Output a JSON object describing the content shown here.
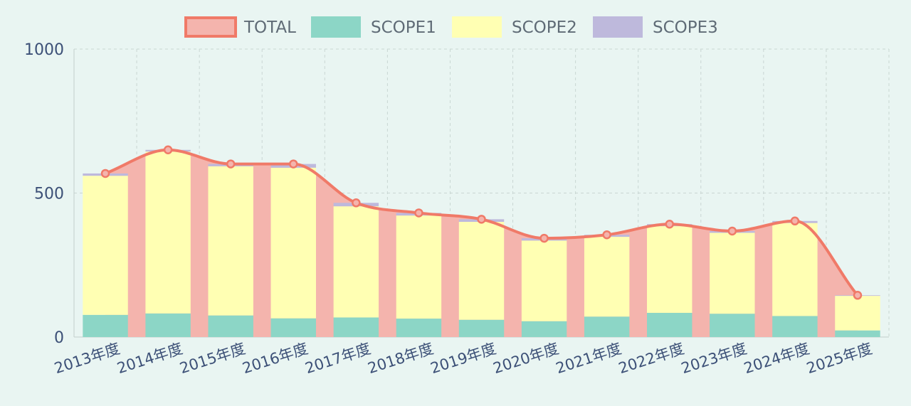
{
  "chart_data": {
    "type": "bar",
    "stacked": true,
    "categories": [
      "2013年度",
      "2014年度",
      "2015年度",
      "2016年度",
      "2017年度",
      "2018年度",
      "2019年度",
      "2020年度",
      "2021年度",
      "2022年度",
      "2023年度",
      "2024年度",
      "2025年度"
    ],
    "series": [
      {
        "name": "TOTAL",
        "chart_type": "line",
        "color": "#f07a68",
        "fill": "#f4b4ad",
        "values": [
          568,
          650,
          601,
          601,
          466,
          431,
          409,
          343,
          355,
          392,
          368,
          403,
          145
        ]
      },
      {
        "name": "SCOPE1",
        "chart_type": "bar",
        "color": "#8cd6c6",
        "values": [
          77,
          82,
          75,
          65,
          68,
          64,
          60,
          55,
          71,
          84,
          81,
          73,
          23
        ]
      },
      {
        "name": "SCOPE2",
        "chart_type": "bar",
        "color": "#ffffb3",
        "values": [
          483,
          562,
          518,
          523,
          386,
          358,
          340,
          280,
          277,
          301,
          281,
          323,
          120
        ]
      },
      {
        "name": "SCOPE3",
        "chart_type": "bar",
        "color": "#beb9dc",
        "values": [
          8,
          6,
          8,
          13,
          12,
          9,
          9,
          8,
          7,
          7,
          6,
          7,
          2
        ]
      }
    ],
    "ylim": [
      0,
      1000
    ],
    "yticks": [
      0,
      500,
      1000
    ],
    "grid": true,
    "legend_position": "top-center",
    "xlabel": "",
    "ylabel": "",
    "title": ""
  }
}
